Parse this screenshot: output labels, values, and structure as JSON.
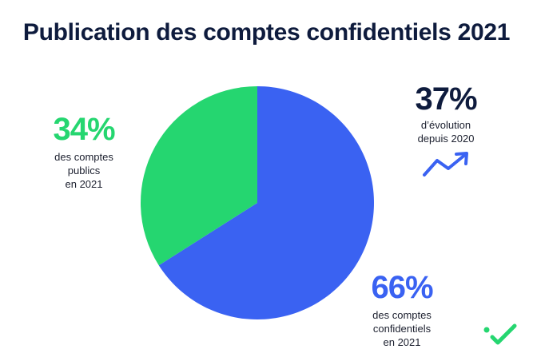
{
  "title": "Publication des comptes confidentiels 2021",
  "colors": {
    "public": "#25d670",
    "confidential": "#3a62f2",
    "navy": "#0e1b3d"
  },
  "chart_data": {
    "type": "pie",
    "title": "Publication des comptes confidentiels 2021",
    "slices": [
      {
        "label": "des comptes confidentiels en 2021",
        "value": 66,
        "color": "#3a62f2"
      },
      {
        "label": "des comptes publics en 2021",
        "value": 34,
        "color": "#25d670"
      }
    ]
  },
  "stats": {
    "public": {
      "pct": "34%",
      "lines": [
        "des comptes",
        "publics",
        "en 2021"
      ]
    },
    "confidential": {
      "pct": "66%",
      "lines": [
        "des comptes",
        "confidentiels",
        "en 2021"
      ]
    },
    "evolution": {
      "pct": "37%",
      "lines": [
        "d’évolution",
        "depuis 2020"
      ],
      "icon": "trend-up-arrow-icon"
    }
  },
  "logo_icon": "check-icon"
}
